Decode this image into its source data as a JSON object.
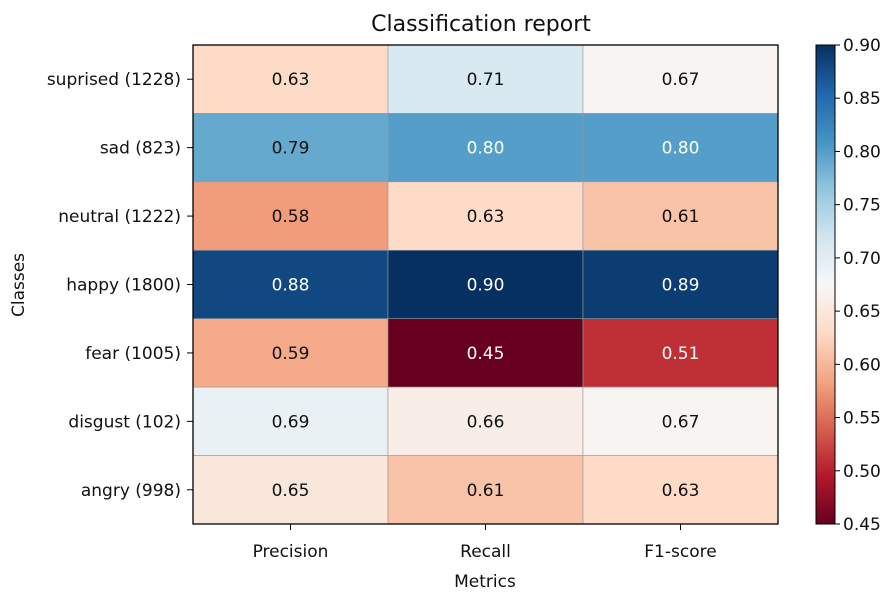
{
  "chart_data": {
    "type": "heatmap",
    "title": "Classification report",
    "xlabel": "Metrics",
    "ylabel": "Classes",
    "x_categories": [
      "Precision",
      "Recall",
      "F1-score"
    ],
    "y_categories": [
      "suprised (1228)",
      "sad (823)",
      "neutral (1222)",
      "happy (1800)",
      "fear (1005)",
      "disgust (102)",
      "angry (998)"
    ],
    "values": [
      [
        0.63,
        0.71,
        0.67
      ],
      [
        0.79,
        0.8,
        0.8
      ],
      [
        0.58,
        0.63,
        0.61
      ],
      [
        0.88,
        0.9,
        0.89
      ],
      [
        0.59,
        0.45,
        0.51
      ],
      [
        0.69,
        0.66,
        0.67
      ],
      [
        0.65,
        0.61,
        0.63
      ]
    ],
    "cell_labels": [
      [
        "0.63",
        "0.71",
        "0.67"
      ],
      [
        "0.79",
        "0.80",
        "0.80"
      ],
      [
        "0.58",
        "0.63",
        "0.61"
      ],
      [
        "0.88",
        "0.90",
        "0.89"
      ],
      [
        "0.59",
        "0.45",
        "0.51"
      ],
      [
        "0.69",
        "0.66",
        "0.67"
      ],
      [
        "0.65",
        "0.61",
        "0.63"
      ]
    ],
    "colorbar": {
      "range": [
        0.45,
        0.9
      ],
      "ticks": [
        "0.90",
        "0.85",
        "0.80",
        "0.75",
        "0.70",
        "0.65",
        "0.60",
        "0.55",
        "0.50",
        "0.45"
      ],
      "tick_values": [
        0.9,
        0.85,
        0.8,
        0.75,
        0.7,
        0.65,
        0.6,
        0.55,
        0.5,
        0.45
      ],
      "colormap": "RdBu",
      "stops": [
        "#67001f",
        "#b2182b",
        "#d6604d",
        "#f4a582",
        "#fddbc7",
        "#f7f7f7",
        "#d1e5f0",
        "#92c5de",
        "#4393c3",
        "#2166ac",
        "#053061"
      ]
    }
  }
}
